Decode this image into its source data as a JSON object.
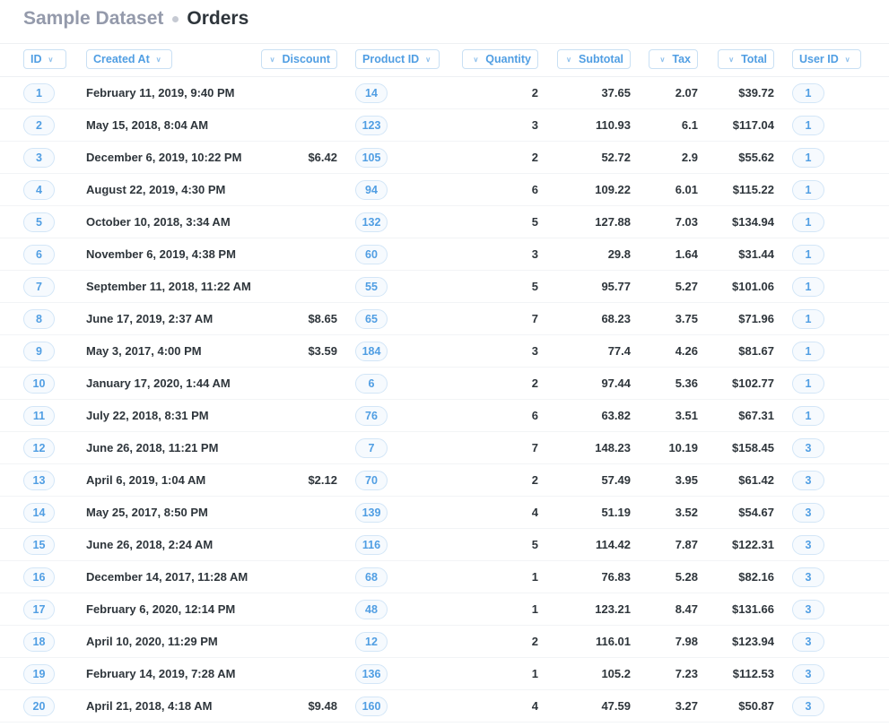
{
  "breadcrumb": {
    "database": "Sample Dataset",
    "table": "Orders"
  },
  "colors": {
    "accent": "#509ee3",
    "text": "#2e353b",
    "muted": "#949aab"
  },
  "columns": [
    "ID",
    "Created At",
    "Discount",
    "Product ID",
    "Quantity",
    "Subtotal",
    "Tax",
    "Total",
    "User ID"
  ],
  "rows": [
    [
      "1",
      "February 11, 2019, 9:40 PM",
      "",
      "14",
      "2",
      "37.65",
      "2.07",
      "$39.72",
      "1"
    ],
    [
      "2",
      "May 15, 2018, 8:04 AM",
      "",
      "123",
      "3",
      "110.93",
      "6.1",
      "$117.04",
      "1"
    ],
    [
      "3",
      "December 6, 2019, 10:22 PM",
      "$6.42",
      "105",
      "2",
      "52.72",
      "2.9",
      "$55.62",
      "1"
    ],
    [
      "4",
      "August 22, 2019, 4:30 PM",
      "",
      "94",
      "6",
      "109.22",
      "6.01",
      "$115.22",
      "1"
    ],
    [
      "5",
      "October 10, 2018, 3:34 AM",
      "",
      "132",
      "5",
      "127.88",
      "7.03",
      "$134.94",
      "1"
    ],
    [
      "6",
      "November 6, 2019, 4:38 PM",
      "",
      "60",
      "3",
      "29.8",
      "1.64",
      "$31.44",
      "1"
    ],
    [
      "7",
      "September 11, 2018, 11:22 AM",
      "",
      "55",
      "5",
      "95.77",
      "5.27",
      "$101.06",
      "1"
    ],
    [
      "8",
      "June 17, 2019, 2:37 AM",
      "$8.65",
      "65",
      "7",
      "68.23",
      "3.75",
      "$71.96",
      "1"
    ],
    [
      "9",
      "May 3, 2017, 4:00 PM",
      "$3.59",
      "184",
      "3",
      "77.4",
      "4.26",
      "$81.67",
      "1"
    ],
    [
      "10",
      "January 17, 2020, 1:44 AM",
      "",
      "6",
      "2",
      "97.44",
      "5.36",
      "$102.77",
      "1"
    ],
    [
      "11",
      "July 22, 2018, 8:31 PM",
      "",
      "76",
      "6",
      "63.82",
      "3.51",
      "$67.31",
      "1"
    ],
    [
      "12",
      "June 26, 2018, 11:21 PM",
      "",
      "7",
      "7",
      "148.23",
      "10.19",
      "$158.45",
      "3"
    ],
    [
      "13",
      "April 6, 2019, 1:04 AM",
      "$2.12",
      "70",
      "2",
      "57.49",
      "3.95",
      "$61.42",
      "3"
    ],
    [
      "14",
      "May 25, 2017, 8:50 PM",
      "",
      "139",
      "4",
      "51.19",
      "3.52",
      "$54.67",
      "3"
    ],
    [
      "15",
      "June 26, 2018, 2:24 AM",
      "",
      "116",
      "5",
      "114.42",
      "7.87",
      "$122.31",
      "3"
    ],
    [
      "16",
      "December 14, 2017, 11:28 AM",
      "",
      "68",
      "1",
      "76.83",
      "5.28",
      "$82.16",
      "3"
    ],
    [
      "17",
      "February 6, 2020, 12:14 PM",
      "",
      "48",
      "1",
      "123.21",
      "8.47",
      "$131.66",
      "3"
    ],
    [
      "18",
      "April 10, 2020, 11:29 PM",
      "",
      "12",
      "2",
      "116.01",
      "7.98",
      "$123.94",
      "3"
    ],
    [
      "19",
      "February 14, 2019, 7:28 AM",
      "",
      "136",
      "1",
      "105.2",
      "7.23",
      "$112.53",
      "3"
    ],
    [
      "20",
      "April 21, 2018, 4:18 AM",
      "$9.48",
      "160",
      "4",
      "47.59",
      "3.27",
      "$50.87",
      "3"
    ]
  ]
}
